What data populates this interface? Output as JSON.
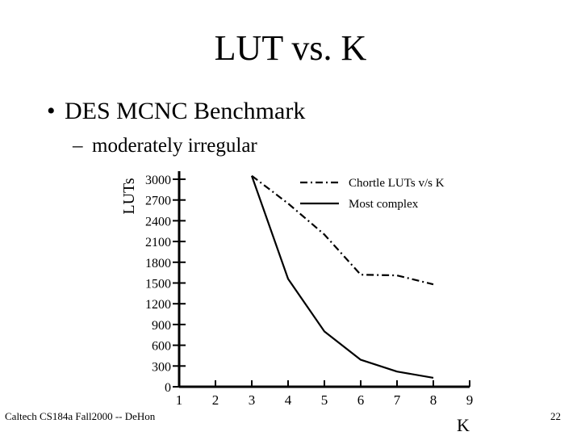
{
  "slide": {
    "title": "LUT vs. K",
    "bullet": "DES MCNC Benchmark",
    "sub_bullet": "moderately irregular",
    "footer_left": "Caltech CS184a Fall2000 -- DeHon",
    "page_number": "22"
  },
  "chart_data": {
    "type": "line",
    "ylabel": "LUTs",
    "xlabel": "K",
    "xlim": [
      1,
      9
    ],
    "ylim": [
      0,
      3000
    ],
    "x_ticks": [
      "1",
      "2",
      "3",
      "4",
      "5",
      "6",
      "7",
      "8",
      "9"
    ],
    "y_ticks": [
      "0",
      "300",
      "600",
      "900",
      "1200",
      "1500",
      "1800",
      "2100",
      "2400",
      "2700",
      "3000"
    ],
    "grid": false,
    "legend_position": "top-right",
    "series": [
      {
        "name": "Chortle LUTs v/s K",
        "style": "dash-dot",
        "x": [
          3,
          4,
          5,
          6,
          7,
          8
        ],
        "values": [
          3050,
          2650,
          2200,
          1620,
          1610,
          1480
        ]
      },
      {
        "name": "Most complex",
        "style": "solid",
        "x": [
          3,
          4,
          5,
          6,
          7,
          8
        ],
        "values": [
          3050,
          1560,
          800,
          390,
          220,
          130
        ]
      }
    ]
  }
}
